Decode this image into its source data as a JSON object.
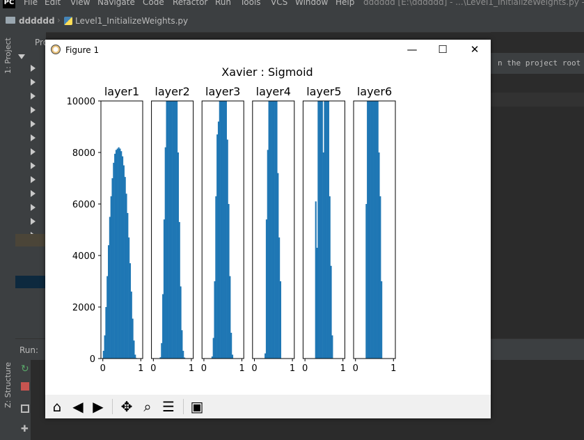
{
  "ide": {
    "menu": [
      "File",
      "Edit",
      "View",
      "Navigate",
      "Code",
      "Refactor",
      "Run",
      "Tools",
      "VCS",
      "Window",
      "Help"
    ],
    "window_title": "dddddd [E:\\dddddd] - ...\\Level1_InitializeWeights.py - ",
    "breadcrumb_project": "dddddd",
    "breadcrumb_file": "Level1_InitializeWeights.py",
    "project_tab": "1: Project",
    "structure_tab": "Z: Structure",
    "run_label": "Run:",
    "editor_hint": "n the project root f",
    "proj_header": "Pro"
  },
  "figure": {
    "window_title": "Figure 1",
    "buttons": {
      "minimize": "—",
      "maximize": "☐",
      "close": "✕"
    },
    "toolbar": [
      "home-icon",
      "back-icon",
      "forward-icon",
      "pan-icon",
      "zoom-icon",
      "configure-icon",
      "save-icon"
    ]
  },
  "chart_data": {
    "type": "bar",
    "title": "Xavier : Sigmoid",
    "ylim": [
      0,
      10000
    ],
    "yticks": [
      0,
      2000,
      4000,
      6000,
      8000,
      10000
    ],
    "xlim": [
      -0.05,
      1.05
    ],
    "xticks": [
      0,
      1
    ],
    "bin_width": 0.0333,
    "panels": [
      {
        "name": "layer1",
        "bins": [
          [
            0.0167,
            300
          ],
          [
            0.05,
            900
          ],
          [
            0.0833,
            2000
          ],
          [
            0.1167,
            3200
          ],
          [
            0.15,
            4400
          ],
          [
            0.1833,
            5500
          ],
          [
            0.2167,
            6300
          ],
          [
            0.25,
            7000
          ],
          [
            0.2833,
            7600
          ],
          [
            0.3167,
            7950
          ],
          [
            0.35,
            8100
          ],
          [
            0.3833,
            8150
          ],
          [
            0.4167,
            8200
          ],
          [
            0.45,
            8150
          ],
          [
            0.4833,
            8050
          ],
          [
            0.5167,
            7850
          ],
          [
            0.55,
            7500
          ],
          [
            0.5833,
            7050
          ],
          [
            0.6167,
            6400
          ],
          [
            0.65,
            5650
          ],
          [
            0.6833,
            4700
          ],
          [
            0.7167,
            3700
          ],
          [
            0.75,
            2600
          ],
          [
            0.7833,
            1550
          ],
          [
            0.8167,
            700
          ],
          [
            0.85,
            150
          ],
          [
            0.8833,
            20
          ]
        ]
      },
      {
        "name": "layer2",
        "bins": [
          [
            0.1833,
            50
          ],
          [
            0.2167,
            600
          ],
          [
            0.25,
            2500
          ],
          [
            0.2833,
            5400
          ],
          [
            0.3167,
            8200
          ],
          [
            0.35,
            10000
          ],
          [
            0.3833,
            10000
          ],
          [
            0.4167,
            10000
          ],
          [
            0.45,
            10000
          ],
          [
            0.4833,
            10000
          ],
          [
            0.5167,
            10000
          ],
          [
            0.55,
            10000
          ],
          [
            0.5833,
            10000
          ],
          [
            0.6167,
            10000
          ],
          [
            0.65,
            8000
          ],
          [
            0.6833,
            5300
          ],
          [
            0.7167,
            2800
          ],
          [
            0.75,
            1100
          ],
          [
            0.7833,
            300
          ],
          [
            0.8167,
            40
          ]
        ]
      },
      {
        "name": "layer3",
        "bins": [
          [
            0.2167,
            80
          ],
          [
            0.25,
            800
          ],
          [
            0.2833,
            3000
          ],
          [
            0.3167,
            6300
          ],
          [
            0.35,
            8700
          ],
          [
            0.3833,
            9200
          ],
          [
            0.4167,
            10000
          ],
          [
            0.45,
            10000
          ],
          [
            0.4833,
            10000
          ],
          [
            0.5167,
            10000
          ],
          [
            0.55,
            10000
          ],
          [
            0.5833,
            10000
          ],
          [
            0.6167,
            8500
          ],
          [
            0.65,
            6000
          ],
          [
            0.6833,
            3200
          ],
          [
            0.7167,
            1000
          ],
          [
            0.75,
            150
          ]
        ]
      },
      {
        "name": "layer4",
        "bins": [
          [
            0.2833,
            200
          ],
          [
            0.3167,
            5400
          ],
          [
            0.35,
            8100
          ],
          [
            0.3833,
            10000
          ],
          [
            0.4167,
            10000
          ],
          [
            0.45,
            10000
          ],
          [
            0.4833,
            10000
          ],
          [
            0.5167,
            10000
          ],
          [
            0.55,
            10000
          ],
          [
            0.5833,
            10000
          ],
          [
            0.6167,
            7200
          ],
          [
            0.65,
            4700
          ],
          [
            0.6833,
            3000
          ]
        ]
      },
      {
        "name": "layer5",
        "bins": [
          [
            0.2833,
            6100
          ],
          [
            0.3167,
            4300
          ],
          [
            0.35,
            10000
          ],
          [
            0.3833,
            10000
          ],
          [
            0.4167,
            10000
          ],
          [
            0.45,
            10000
          ],
          [
            0.4833,
            8000
          ],
          [
            0.5167,
            10000
          ],
          [
            0.55,
            10000
          ],
          [
            0.5833,
            10000
          ],
          [
            0.6167,
            10000
          ],
          [
            0.65,
            6300
          ],
          [
            0.6833,
            3600
          ],
          [
            0.7167,
            900
          ]
        ]
      },
      {
        "name": "layer6",
        "bins": [
          [
            0.2833,
            6000
          ],
          [
            0.3167,
            10000
          ],
          [
            0.35,
            10000
          ],
          [
            0.3833,
            10000
          ],
          [
            0.4167,
            10000
          ],
          [
            0.45,
            10000
          ],
          [
            0.4833,
            10000
          ],
          [
            0.5167,
            10000
          ],
          [
            0.55,
            10000
          ],
          [
            0.5833,
            10000
          ],
          [
            0.6167,
            8000
          ],
          [
            0.65,
            6300
          ],
          [
            0.6833,
            3000
          ]
        ]
      }
    ],
    "bar_color": "#1f77b4",
    "grid": false
  }
}
